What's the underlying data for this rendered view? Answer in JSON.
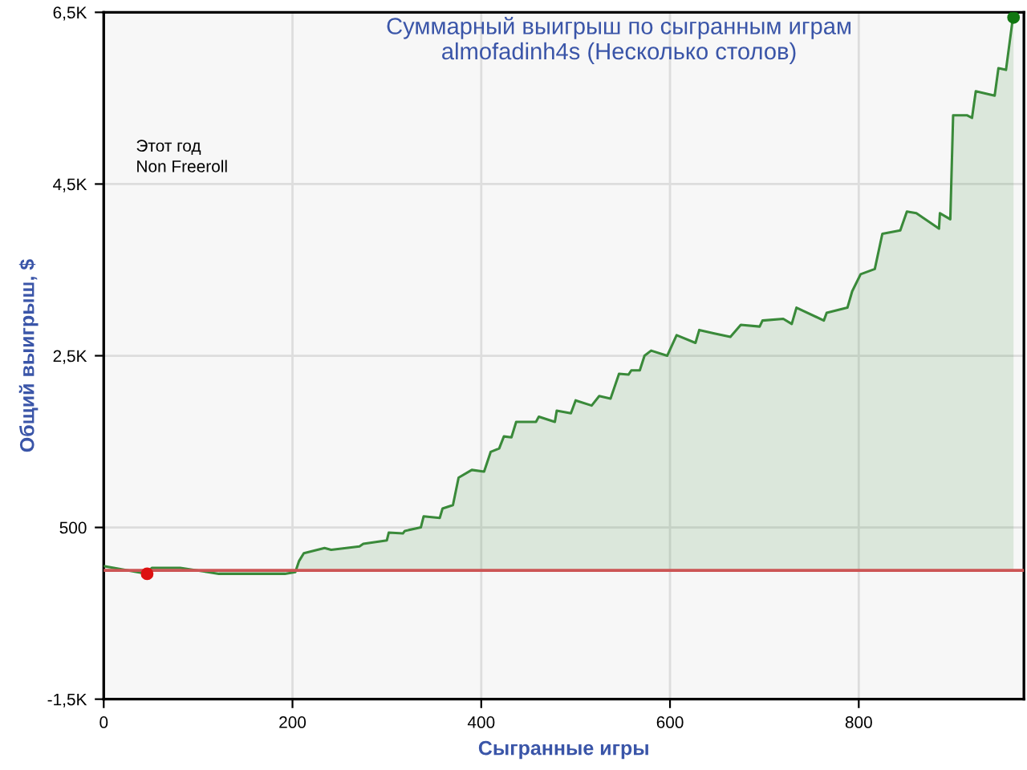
{
  "chart_data": {
    "type": "area",
    "title": "Суммарный выигрыш по сыгранным играм\nalmofadinh4s (Несколько столов)",
    "xlabel": "Сыгранные игры",
    "ylabel": "Общий выигрыш, $",
    "annotations": [
      "Этот год",
      "Non Freeroll"
    ],
    "xlim": [
      0,
      975
    ],
    "xticks": [
      0,
      200,
      400,
      600,
      800
    ],
    "ylim": [
      -1500,
      6500
    ],
    "yticks": [
      {
        "value": -1500,
        "label": "-1,5K"
      },
      500,
      {
        "value": 2500,
        "label": "2,5K"
      },
      {
        "value": 4500,
        "label": "4,5K"
      },
      {
        "value": 6500,
        "label": "6,5K"
      }
    ],
    "grid": true,
    "legend": false,
    "ref_lines": [
      {
        "axis": "y",
        "value": 0,
        "color": "#cc5555"
      }
    ],
    "series": [
      {
        "color": "#3a8a3a",
        "x": [
          0,
          46,
          51,
          81,
          122,
          192,
          203,
          207,
          212,
          234,
          241,
          271,
          275,
          300,
          302,
          317,
          319,
          336,
          339,
          356,
          359,
          370,
          376,
          390,
          403,
          410,
          419,
          424,
          432,
          437,
          458,
          461,
          478,
          480,
          495,
          500,
          517,
          525,
          537,
          546,
          556,
          559,
          568,
          573,
          580,
          597,
          607,
          627,
          631,
          647,
          664,
          675,
          695,
          698,
          720,
          729,
          734,
          763,
          766,
          788,
          793,
          802,
          817,
          825,
          844,
          851,
          861,
          885,
          886,
          897,
          900,
          915,
          920,
          924,
          944,
          948,
          956,
          963,
          964
        ],
        "values": [
          50,
          -40,
          30,
          30,
          -40,
          -40,
          -20,
          110,
          200,
          260,
          240,
          280,
          310,
          350,
          440,
          430,
          460,
          500,
          630,
          610,
          720,
          760,
          1080,
          1170,
          1150,
          1380,
          1420,
          1560,
          1550,
          1730,
          1730,
          1790,
          1730,
          1860,
          1830,
          1980,
          1920,
          2030,
          2000,
          2290,
          2280,
          2330,
          2330,
          2500,
          2560,
          2500,
          2740,
          2650,
          2800,
          2760,
          2720,
          2860,
          2840,
          2910,
          2930,
          2870,
          3060,
          2910,
          3000,
          3060,
          3250,
          3450,
          3510,
          3920,
          3960,
          4180,
          4160,
          3980,
          4160,
          4090,
          5300,
          5300,
          5270,
          5580,
          5530,
          5850,
          5830,
          6410,
          6440
        ]
      },
      {
        "type": "scatter",
        "x": [
          46,
          964
        ],
        "values": [
          -40,
          6440
        ],
        "colors": [
          "#dd1111",
          "#117711"
        ],
        "marker": "circle"
      }
    ]
  }
}
